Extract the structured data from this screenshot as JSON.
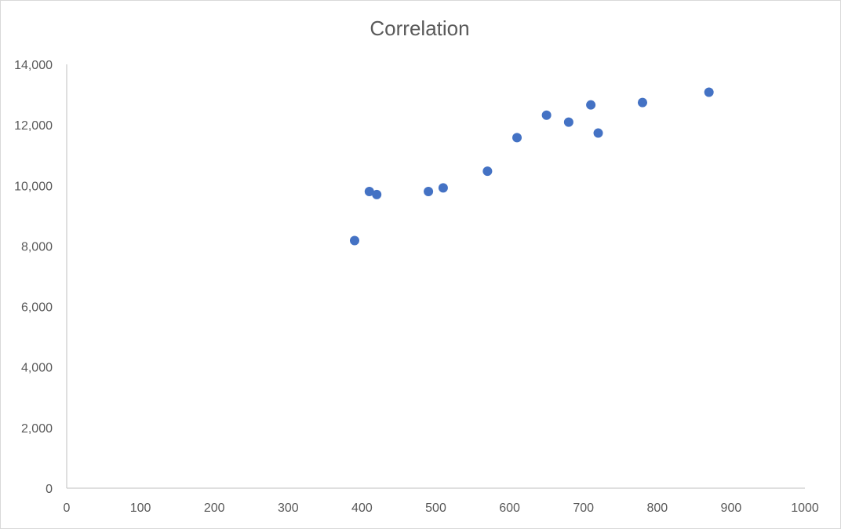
{
  "chart_data": {
    "type": "scatter",
    "title": "Correlation",
    "xlabel": "",
    "ylabel": "",
    "xlim": [
      0,
      1000
    ],
    "ylim": [
      0,
      14000
    ],
    "x_ticks": [
      "0",
      "100",
      "200",
      "300",
      "400",
      "500",
      "600",
      "700",
      "800",
      "900",
      "1000"
    ],
    "y_ticks": [
      "0",
      "2,000",
      "4,000",
      "6,000",
      "8,000",
      "10,000",
      "12,000",
      "14,000"
    ],
    "grid": false,
    "legend": "none",
    "marker_color": "#4472c4",
    "points": [
      {
        "x": 390,
        "y": 8180
      },
      {
        "x": 410,
        "y": 9800
      },
      {
        "x": 420,
        "y": 9700
      },
      {
        "x": 490,
        "y": 9800
      },
      {
        "x": 510,
        "y": 9920
      },
      {
        "x": 570,
        "y": 10470
      },
      {
        "x": 610,
        "y": 11580
      },
      {
        "x": 650,
        "y": 12320
      },
      {
        "x": 680,
        "y": 12090
      },
      {
        "x": 710,
        "y": 12660
      },
      {
        "x": 720,
        "y": 11730
      },
      {
        "x": 780,
        "y": 12740
      },
      {
        "x": 870,
        "y": 13080
      }
    ]
  }
}
